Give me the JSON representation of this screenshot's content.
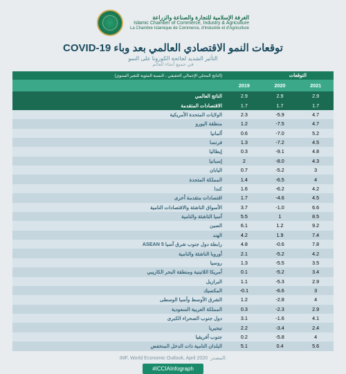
{
  "org": {
    "ar": "الغرفة الإسلامية للتجارة والصناعة والزراعة",
    "en": "Islamic Chamber of Commerce, Industry & Agriculture",
    "fr": "La Chambre Islamique de Commerce, d'Industrie et d'Agriculture"
  },
  "title": "توقعات النمو الاقتصادي العالمي بعد وباء COVID-19",
  "subtitle": "التأثير الشديد لجائحة الكورونا على النمو",
  "sub2": "في جميع أنحاء العالم",
  "projections_label": "التوقعات",
  "note": "(الناتج المحلي الإجمالي الحقيقي ، النسبة المئوية للتغير السنوي)",
  "headers": {
    "y2019": "2019",
    "y2020": "2020",
    "y2021": "2021"
  },
  "rows": [
    {
      "label": "الناتج العالمي",
      "v2019": "2.9",
      "v2020": "2.9",
      "v2021": "2.9",
      "hl": true
    },
    {
      "label": "الاقتصادات المتقدمة",
      "v2019": "1.7",
      "v2020": "1.7",
      "v2021": "1.7",
      "hl": true
    },
    {
      "label": "الولايات المتحدة الأمريكية",
      "v2019": "2.3",
      "v2020": "-5.9",
      "v2021": "4.7"
    },
    {
      "label": "منطقة اليورو",
      "v2019": "1.2",
      "v2020": "-7.5",
      "v2021": "4.7"
    },
    {
      "label": "ألمانيا",
      "v2019": "0.6",
      "v2020": "-7.0",
      "v2021": "5.2"
    },
    {
      "label": "فرنسا",
      "v2019": "1.3",
      "v2020": "-7.2",
      "v2021": "4.5"
    },
    {
      "label": "إيطاليا",
      "v2019": "0.3",
      "v2020": "-9.1",
      "v2021": "4.8"
    },
    {
      "label": "إسبانيا",
      "v2019": "2",
      "v2020": "-8.0",
      "v2021": "4.3"
    },
    {
      "label": "اليابان",
      "v2019": "0.7",
      "v2020": "-5.2",
      "v2021": "3"
    },
    {
      "label": "المملكة المتحدة",
      "v2019": "1.4",
      "v2020": "-6.5",
      "v2021": "4"
    },
    {
      "label": "كندا",
      "v2019": "1.6",
      "v2020": "-6.2",
      "v2021": "4.2"
    },
    {
      "label": "اقتصادات متقدمة أخرى",
      "v2019": "1.7",
      "v2020": "-4.6",
      "v2021": "4.5"
    },
    {
      "label": "الأسواق الناشئة والاقتصادات النامية",
      "v2019": "3.7",
      "v2020": "-1.0",
      "v2021": "6.6"
    },
    {
      "label": "آسيا الناشئة والنامية",
      "v2019": "5.5",
      "v2020": "1",
      "v2021": "8.5"
    },
    {
      "label": "الصين",
      "v2019": "6.1",
      "v2020": "1.2",
      "v2021": "9.2"
    },
    {
      "label": "الهند",
      "v2019": "4.2",
      "v2020": "1.9",
      "v2021": "7.4"
    },
    {
      "label": "رابطة دول جنوب شرق آسيا ASEAN 5",
      "v2019": "4.8",
      "v2020": "-0.6",
      "v2021": "7.8"
    },
    {
      "label": "أوروبا الناشئة والنامية",
      "v2019": "2.1",
      "v2020": "-5.2",
      "v2021": "4.2"
    },
    {
      "label": "روسيا",
      "v2019": "1.3",
      "v2020": "-5.5",
      "v2021": "3.5"
    },
    {
      "label": "أمريكا اللاتينية ومنطقة البحر الكاريبي",
      "v2019": "0.1",
      "v2020": "-5.2",
      "v2021": "3.4"
    },
    {
      "label": "البرازيل",
      "v2019": "1.1",
      "v2020": "-5.3",
      "v2021": "2.9"
    },
    {
      "label": "المكسيك",
      "v2019": "-0.1",
      "v2020": "-6.6",
      "v2021": "3"
    },
    {
      "label": "الشرق الأوسط وآسيا الوسطى",
      "v2019": "1.2",
      "v2020": "-2.8",
      "v2021": "4"
    },
    {
      "label": "المملكة العربية السعودية",
      "v2019": "0.3",
      "v2020": "-2.3",
      "v2021": "2.9"
    },
    {
      "label": "دول جنوب الصحراء الكبرى",
      "v2019": "3.1",
      "v2020": "-1.6",
      "v2021": "4.1"
    },
    {
      "label": "نيجيريا",
      "v2019": "2.2",
      "v2020": "-3.4",
      "v2021": "2.4"
    },
    {
      "label": "جنوب أفريقيا",
      "v2019": "0.2",
      "v2020": "-5.8",
      "v2021": "4"
    },
    {
      "label": "البلدان النامية ذات الدخل المنخفض",
      "v2019": "5.1",
      "v2020": "0.4",
      "v2021": "5.6"
    }
  ],
  "source_label": "المصدر:",
  "source": "IMF, World Economic Outlook, April 2020",
  "hashtag": "#ICCIAInfograph",
  "colors": {
    "header_bg": "#3aa889",
    "header_dark": "#1a7a5c",
    "hl_row": "#1a6b52",
    "row_odd": "#d8e4ea",
    "row_even": "#c5d6de",
    "page_bg": "#e8ecef",
    "title_color": "#1a4a5e",
    "hashtag_bg": "#1a8a6a"
  }
}
